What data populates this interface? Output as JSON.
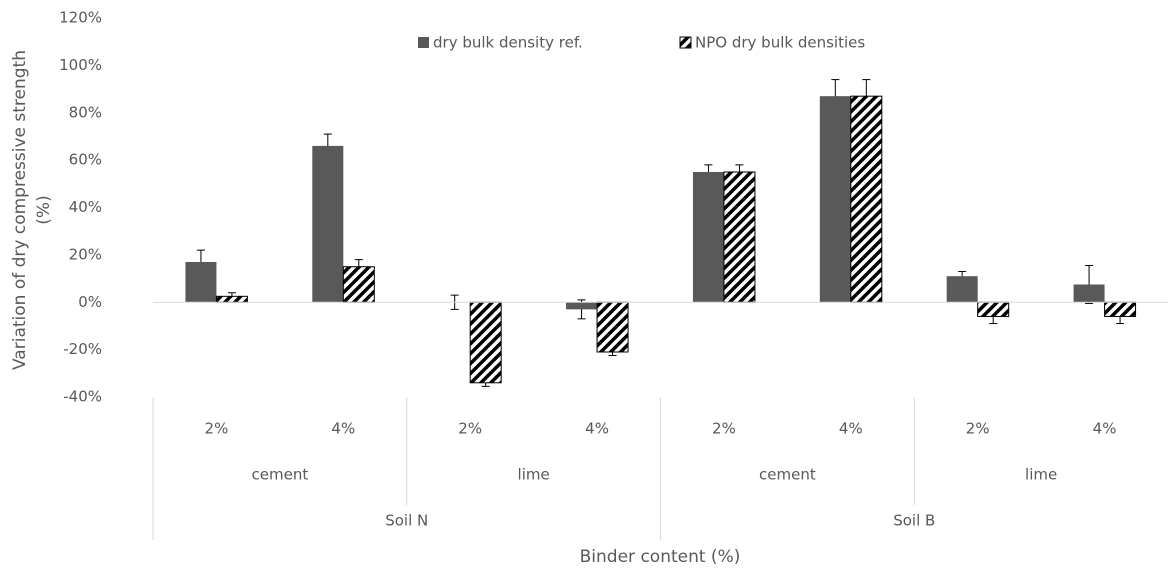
{
  "chart_data": {
    "type": "bar",
    "y_label": [
      "Variation of dry compressive strength",
      "(%)"
    ],
    "x_label": "Binder content (%)",
    "categories": [
      "2%",
      "4%",
      "2%",
      "4%",
      "2%",
      "4%",
      "2%",
      "4%"
    ],
    "binders": [
      "cement",
      "lime",
      "cement",
      "lime"
    ],
    "soils": [
      "Soil N",
      "Soil B"
    ],
    "series": [
      {
        "name": "dry bulk density ref.",
        "color": "#595959",
        "pattern": "solid",
        "values": [
          17,
          66,
          0,
          -3,
          55,
          87,
          11,
          7.5
        ],
        "errors": [
          5,
          5,
          3,
          4,
          3,
          7,
          2,
          8
        ]
      },
      {
        "name": "NPO dry bulk densities",
        "color": "#000000",
        "pattern": "hatch",
        "values": [
          2.5,
          15,
          -34,
          -21,
          55,
          87,
          -6,
          -6
        ],
        "errors": [
          1.5,
          3,
          1.5,
          1.5,
          3,
          7,
          3,
          3
        ]
      }
    ],
    "ylim": [
      -40,
      120
    ],
    "yticks": [
      {
        "value": -40,
        "label": "-40%"
      },
      {
        "value": -20,
        "label": "-20%"
      },
      {
        "value": 0,
        "label": "0%"
      },
      {
        "value": 20,
        "label": "20%"
      },
      {
        "value": 40,
        "label": "40%"
      },
      {
        "value": 60,
        "label": "60%"
      },
      {
        "value": 80,
        "label": "80%"
      },
      {
        "value": 100,
        "label": "100%"
      },
      {
        "value": 120,
        "label": "120%"
      }
    ],
    "grid": false,
    "legend": "top"
  }
}
